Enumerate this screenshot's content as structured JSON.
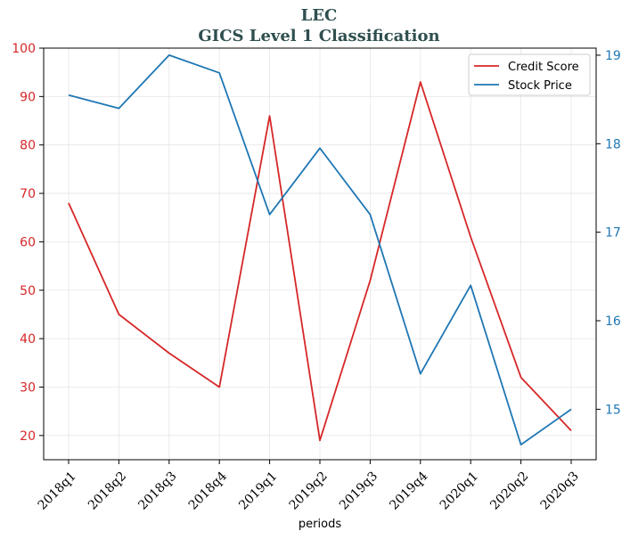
{
  "chart_data": {
    "type": "line",
    "title": "LEC",
    "subtitle": "GICS Level 1 Classification",
    "xlabel": "periods",
    "categories": [
      "2018q1",
      "2018q2",
      "2018q3",
      "2018q4",
      "2019q1",
      "2019q2",
      "2019q3",
      "2019q4",
      "2020q1",
      "2020q2",
      "2020q3"
    ],
    "y_left": {
      "ylim": [
        15,
        100
      ],
      "ticks": [
        20,
        30,
        40,
        50,
        60,
        70,
        80,
        90,
        100
      ],
      "color": "#d62728"
    },
    "y_right": {
      "ylim": [
        14.43,
        19.08
      ],
      "ticks": [
        15,
        16,
        17,
        18,
        19
      ],
      "color": "#1f77b4"
    },
    "series": [
      {
        "name": "Credit Score",
        "axis": "left",
        "color": "#d62728",
        "values": [
          68,
          45,
          37,
          30,
          86,
          19,
          52,
          93,
          61,
          32,
          21
        ]
      },
      {
        "name": "Stock Price",
        "axis": "right",
        "color": "#1f77b4",
        "values": [
          18.55,
          18.4,
          19.0,
          18.8,
          17.2,
          17.95,
          17.2,
          15.4,
          16.4,
          14.6,
          15.0
        ]
      }
    ],
    "grid": true,
    "legend": "top-right"
  }
}
